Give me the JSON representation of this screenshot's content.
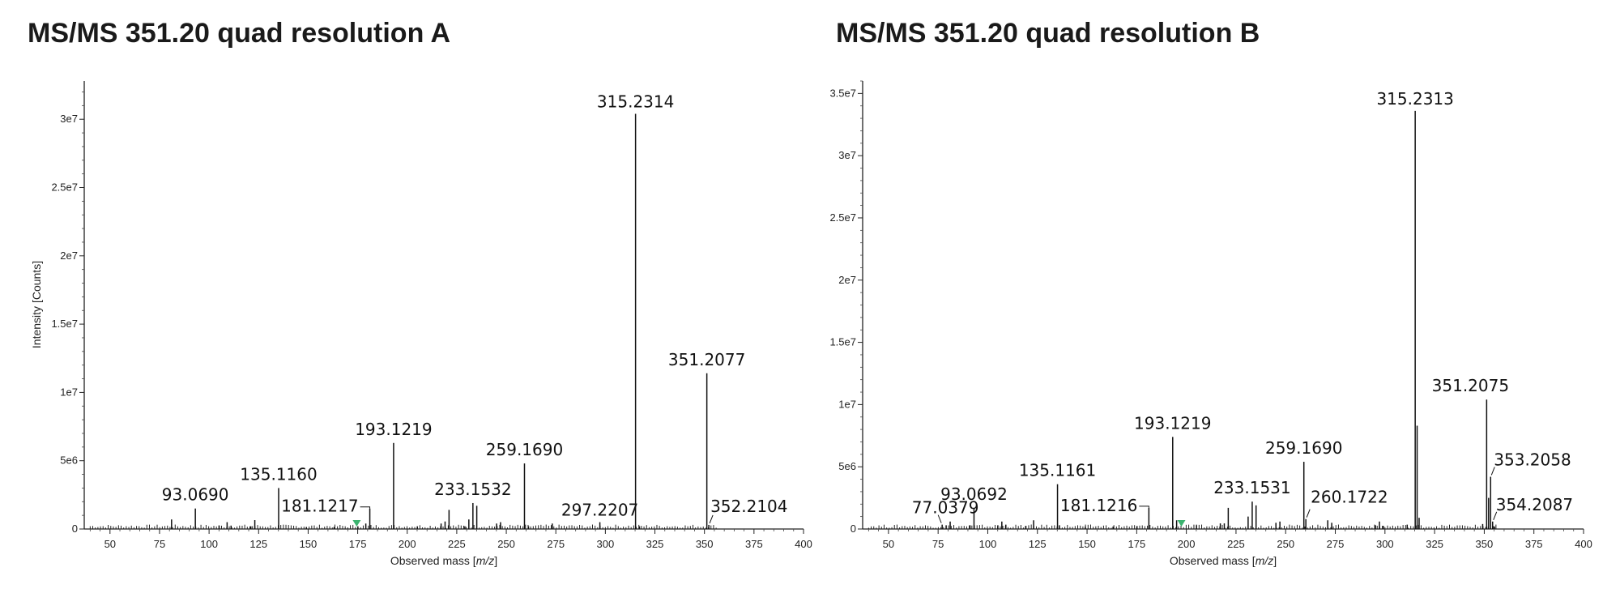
{
  "chart_data": [
    {
      "type": "bar",
      "title": "MS/MS 351.20 quad resolution A",
      "xlabel": "Observed mass [m/z]",
      "ylabel": "Intensity [Counts]",
      "xlim": [
        37,
        400
      ],
      "ylim": [
        0,
        32800000
      ],
      "x_ticks": [
        50,
        75,
        100,
        125,
        150,
        175,
        200,
        225,
        250,
        275,
        300,
        325,
        350,
        375,
        400
      ],
      "y_ticks": [
        {
          "value": 0,
          "label": "0"
        },
        {
          "value": 5000000,
          "label": "5e6"
        },
        {
          "value": 10000000,
          "label": "1e7"
        },
        {
          "value": 15000000,
          "label": "1.5e7"
        },
        {
          "value": 20000000,
          "label": "2e7"
        },
        {
          "value": 25000000,
          "label": "2.5e7"
        },
        {
          "value": 30000000,
          "label": "3e7"
        }
      ],
      "precursor_marker": {
        "mz": 174.5,
        "color": "#3bb36f"
      },
      "peaks": [
        {
          "mz": 81.07,
          "intensity": 700000
        },
        {
          "mz": 93.069,
          "intensity": 1500000,
          "label": "93.0690"
        },
        {
          "mz": 105.07,
          "intensity": 250000
        },
        {
          "mz": 109.1,
          "intensity": 500000
        },
        {
          "mz": 111.1,
          "intensity": 250000
        },
        {
          "mz": 121.1,
          "intensity": 200000
        },
        {
          "mz": 123.08,
          "intensity": 650000
        },
        {
          "mz": 135.116,
          "intensity": 3000000,
          "label": "135.1160"
        },
        {
          "mz": 149.1,
          "intensity": 150000
        },
        {
          "mz": 163.1,
          "intensity": 150000
        },
        {
          "mz": 175.1,
          "intensity": 200000
        },
        {
          "mz": 179.1,
          "intensity": 400000
        },
        {
          "mz": 181.1217,
          "intensity": 1500000,
          "label": "181.1217"
        },
        {
          "mz": 193.1219,
          "intensity": 6300000,
          "label": "193.1219"
        },
        {
          "mz": 205.1,
          "intensity": 200000
        },
        {
          "mz": 217.1,
          "intensity": 400000
        },
        {
          "mz": 219.1,
          "intensity": 550000
        },
        {
          "mz": 221.1,
          "intensity": 1400000
        },
        {
          "mz": 229.1,
          "intensity": 200000
        },
        {
          "mz": 231.1,
          "intensity": 700000
        },
        {
          "mz": 233.1532,
          "intensity": 1900000,
          "label": "233.1532"
        },
        {
          "mz": 235.1,
          "intensity": 1700000
        },
        {
          "mz": 245.1,
          "intensity": 400000
        },
        {
          "mz": 247.1,
          "intensity": 500000
        },
        {
          "mz": 259.169,
          "intensity": 4800000,
          "label": "259.1690"
        },
        {
          "mz": 261.2,
          "intensity": 200000
        },
        {
          "mz": 273.2,
          "intensity": 400000
        },
        {
          "mz": 297.2207,
          "intensity": 500000,
          "label": "297.2207"
        },
        {
          "mz": 315.2314,
          "intensity": 30400000,
          "label": "315.2314"
        },
        {
          "mz": 317.2,
          "intensity": 200000
        },
        {
          "mz": 351.2077,
          "intensity": 11400000,
          "label": "351.2077"
        },
        {
          "mz": 352.2104,
          "intensity": 300000,
          "label": "352.2104"
        }
      ]
    },
    {
      "type": "bar",
      "title": "MS/MS 351.20 quad resolution B",
      "xlabel": "Observed mass [m/z]",
      "ylabel": "",
      "xlim": [
        37,
        400
      ],
      "ylim": [
        0,
        36000000
      ],
      "x_ticks": [
        50,
        75,
        100,
        125,
        150,
        175,
        200,
        225,
        250,
        275,
        300,
        325,
        350,
        375,
        400
      ],
      "y_ticks": [
        {
          "value": 0,
          "label": "0"
        },
        {
          "value": 5000000,
          "label": "5e6"
        },
        {
          "value": 10000000,
          "label": "1e7"
        },
        {
          "value": 15000000,
          "label": "1.5e7"
        },
        {
          "value": 20000000,
          "label": "2e7"
        },
        {
          "value": 25000000,
          "label": "2.5e7"
        },
        {
          "value": 30000000,
          "label": "3e7"
        },
        {
          "value": 35000000,
          "label": "3.5e7"
        }
      ],
      "precursor_marker": {
        "mz": 197.5,
        "color": "#3bb36f"
      },
      "peaks": [
        {
          "mz": 77.0379,
          "intensity": 350000,
          "label": "77.0379"
        },
        {
          "mz": 79.05,
          "intensity": 300000
        },
        {
          "mz": 81.07,
          "intensity": 600000
        },
        {
          "mz": 91.05,
          "intensity": 300000
        },
        {
          "mz": 93.0692,
          "intensity": 1700000,
          "label": "93.0692"
        },
        {
          "mz": 105.07,
          "intensity": 300000
        },
        {
          "mz": 107.08,
          "intensity": 600000
        },
        {
          "mz": 109.1,
          "intensity": 350000
        },
        {
          "mz": 119.09,
          "intensity": 250000
        },
        {
          "mz": 123.08,
          "intensity": 700000
        },
        {
          "mz": 135.1161,
          "intensity": 3600000,
          "label": "135.1161"
        },
        {
          "mz": 136.1,
          "intensity": 300000
        },
        {
          "mz": 149.1,
          "intensity": 200000
        },
        {
          "mz": 163.1,
          "intensity": 200000
        },
        {
          "mz": 175.1,
          "intensity": 200000
        },
        {
          "mz": 181.1216,
          "intensity": 1700000,
          "label": "181.1216"
        },
        {
          "mz": 193.1219,
          "intensity": 7400000,
          "label": "193.1219"
        },
        {
          "mz": 195.1,
          "intensity": 700000
        },
        {
          "mz": 205.1,
          "intensity": 300000
        },
        {
          "mz": 217.1,
          "intensity": 450000
        },
        {
          "mz": 219.1,
          "intensity": 450000
        },
        {
          "mz": 221.1,
          "intensity": 1700000
        },
        {
          "mz": 231.1,
          "intensity": 1000000
        },
        {
          "mz": 233.1531,
          "intensity": 2200000,
          "label": "233.1531"
        },
        {
          "mz": 235.1,
          "intensity": 1900000
        },
        {
          "mz": 245.1,
          "intensity": 500000
        },
        {
          "mz": 247.1,
          "intensity": 600000
        },
        {
          "mz": 259.169,
          "intensity": 5400000,
          "label": "259.1690"
        },
        {
          "mz": 260.1722,
          "intensity": 800000,
          "label": "260.1722"
        },
        {
          "mz": 271.2,
          "intensity": 700000
        },
        {
          "mz": 273.2,
          "intensity": 500000
        },
        {
          "mz": 295.2,
          "intensity": 300000
        },
        {
          "mz": 297.22,
          "intensity": 600000
        },
        {
          "mz": 299.2,
          "intensity": 250000
        },
        {
          "mz": 311.2,
          "intensity": 350000
        },
        {
          "mz": 315.2313,
          "intensity": 33600000,
          "label": "315.2313"
        },
        {
          "mz": 316.2,
          "intensity": 8300000
        },
        {
          "mz": 317.2,
          "intensity": 900000
        },
        {
          "mz": 349.2,
          "intensity": 400000
        },
        {
          "mz": 351.2075,
          "intensity": 10400000,
          "label": "351.2075"
        },
        {
          "mz": 352.2,
          "intensity": 2500000
        },
        {
          "mz": 353.2058,
          "intensity": 4200000,
          "label": "353.2058"
        },
        {
          "mz": 354.2087,
          "intensity": 600000,
          "label": "354.2087"
        },
        {
          "mz": 355.2,
          "intensity": 200000
        }
      ]
    }
  ]
}
